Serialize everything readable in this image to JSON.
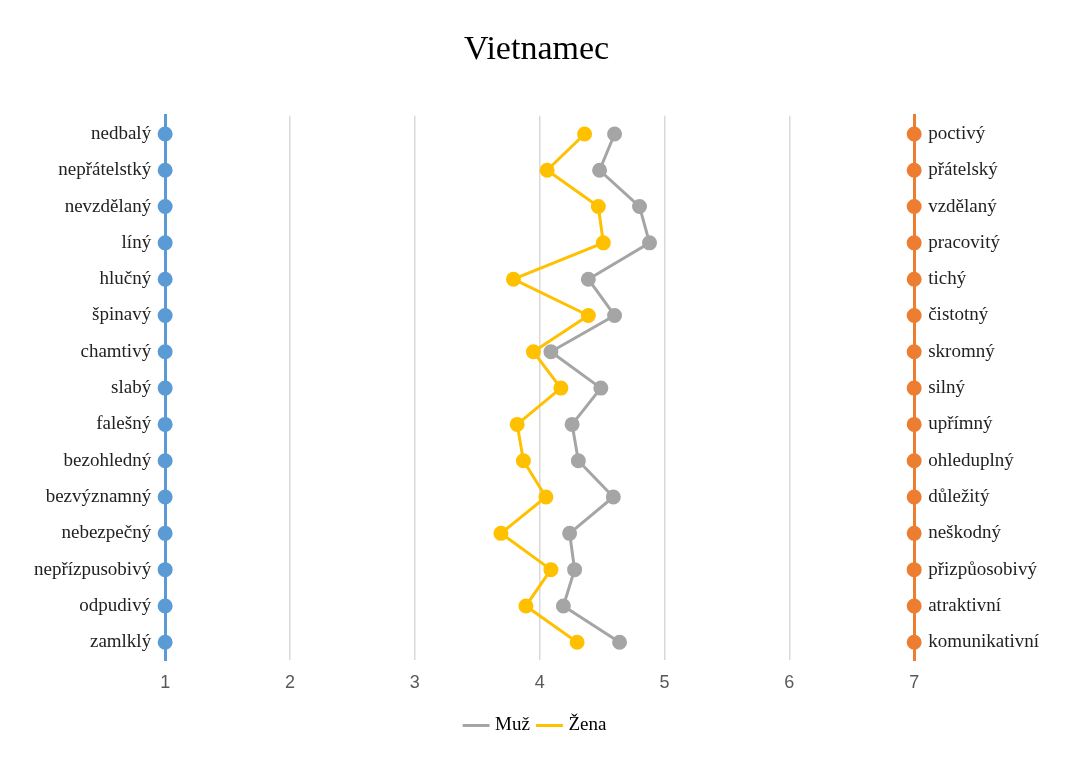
{
  "chart_data": {
    "type": "line",
    "title": "Vietnamec",
    "orientation": "horizontal",
    "categories": [
      "nedbalý",
      "nepřátelstký",
      "nevzdělaný",
      "líný",
      "hlučný",
      "špinavý",
      "chamtivý",
      "slabý",
      "falešný",
      "bezohledný",
      "bezvýznamný",
      "nebezpečný",
      "nepřízpusobivý",
      "odpudivý",
      "zamlklý"
    ],
    "y2_categories": [
      "poctivý",
      "přátelský",
      "vzdělaný",
      "pracovitý",
      "tichý",
      "čistotný",
      "skromný",
      "silný",
      "upřímný",
      "ohleduplný",
      "důležitý",
      "neškodný",
      "přizpůosobivý",
      "atraktivní",
      "komunikativní"
    ],
    "series": [
      {
        "type": "scatter",
        "color": "#5b9bd5",
        "values": [
          1,
          1,
          1,
          1,
          1,
          1,
          1,
          1,
          1,
          1,
          1,
          1,
          1,
          1,
          1
        ]
      },
      {
        "type": "scatter",
        "color": "#ed7d31",
        "values": [
          7,
          7,
          7,
          7,
          7,
          7,
          7,
          7,
          7,
          7,
          7,
          7,
          7,
          7,
          7
        ]
      },
      {
        "name": "Muž",
        "color": "#a5a5a5",
        "values": [
          4.6,
          4.48,
          4.8,
          4.88,
          4.39,
          4.6,
          4.09,
          4.49,
          4.26,
          4.31,
          4.59,
          4.24,
          4.28,
          4.19,
          4.64
        ]
      },
      {
        "name": "Žena",
        "color": "#ffc000",
        "values": [
          4.36,
          4.06,
          4.47,
          4.51,
          3.79,
          4.39,
          3.95,
          4.17,
          3.82,
          3.87,
          4.05,
          3.69,
          4.09,
          3.89,
          4.3
        ]
      }
    ],
    "xlim": [
      1,
      7
    ],
    "xticks": [
      1,
      2,
      3,
      4,
      5,
      6,
      7
    ],
    "grid": "x",
    "legend": "bottom",
    "marker": "circle",
    "line_style": "solid"
  }
}
